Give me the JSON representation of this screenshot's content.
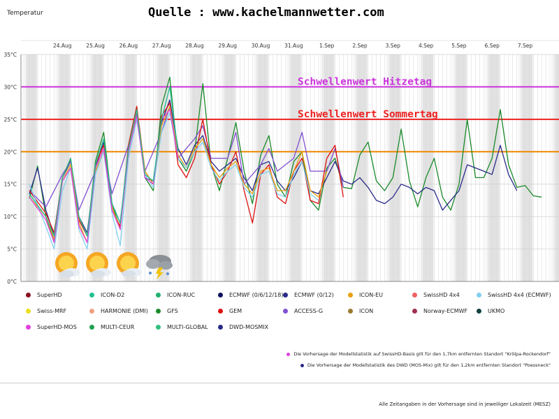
{
  "header": {
    "source": "Quelle : www.kachelmannwetter.com",
    "ytitle": "Temperatur"
  },
  "footer": {
    "timezone_note": "Alle Zeitangaben in der Vorhersage sind in jeweiliger Lokalzeit (MESZ)"
  },
  "notes": [
    {
      "text": "Die Vorhersage der Modellstatistik auf SwissHD-Basis gilt für den 1,7km entfernten Standort \"Krölpa-Rockendorf\"",
      "color": "#e040e0"
    },
    {
      "text": "Die Vorhersage der Modellstatistik des DWD (MOS-Mix) gilt für den 1,2km entfernten Standort \"Poessneck\"",
      "color": "#2a2a8a"
    }
  ],
  "weather_icons": [
    "sun-cloud-icon",
    "sun-cloud-icon",
    "sun-cloud-icon",
    "thunderstorm-icon"
  ],
  "chart_data": {
    "type": "line",
    "title": "",
    "xlabel": "",
    "ylabel": "Temperatur",
    "ylim": [
      0,
      35
    ],
    "yticks": [
      0,
      5,
      10,
      15,
      20,
      25,
      30,
      35
    ],
    "ytick_labels": [
      "0°C",
      "5°C",
      "10°C",
      "15°C",
      "20°C",
      "25°C",
      "30°C",
      "35°C"
    ],
    "day_labels": [
      "24.Aug",
      "25.Aug",
      "26.Aug",
      "27.Aug",
      "28.Aug",
      "29.Aug",
      "30.Aug",
      "31.Aug",
      "1.Sep",
      "2.Sep",
      "3.Sep",
      "4.Sep",
      "5.Sep",
      "6.Sep",
      "7.Sep"
    ],
    "x_unit": "days from 23.Aug 00:00",
    "thresholds": [
      {
        "label": "Schwellenwert Hitzetag",
        "value": 30,
        "color": "#cc33dd"
      },
      {
        "label": "Schwellenwert Sommertag",
        "value": 25,
        "color": "#ee2222"
      },
      {
        "label": "",
        "value": 20,
        "color": "#ee8800"
      }
    ],
    "legend_placement": "bottom",
    "legend": [
      {
        "name": "SuperHD",
        "color": "#8b1020"
      },
      {
        "name": "ICON-D2",
        "color": "#20c090"
      },
      {
        "name": "ICON-RUC",
        "color": "#20b070"
      },
      {
        "name": "ECMWF (0/6/12/18)",
        "color": "#101060"
      },
      {
        "name": "ECMWF (0/12)",
        "color": "#2a2a8a"
      },
      {
        "name": "ICON-EU",
        "color": "#e8a010"
      },
      {
        "name": "SwissHD 4x4",
        "color": "#f06060"
      },
      {
        "name": "SwissHD 4x4 (ECMWF)",
        "color": "#80d0f0"
      },
      {
        "name": "Swiss-MRF",
        "color": "#e8e020"
      },
      {
        "name": "HARMONIE (DMI)",
        "color": "#f0a080"
      },
      {
        "name": "GFS",
        "color": "#1a8a2a"
      },
      {
        "name": "GEM",
        "color": "#dd1010"
      },
      {
        "name": "ACCESS-G",
        "color": "#8050d0"
      },
      {
        "name": "ICON",
        "color": "#9a7a30"
      },
      {
        "name": "Norway-ECMWF",
        "color": "#a03050"
      },
      {
        "name": "UKMO",
        "color": "#104040"
      },
      {
        "name": "SuperHD-MOS",
        "color": "#e040e0"
      },
      {
        "name": "MULTI-CEUR",
        "color": "#20a050"
      },
      {
        "name": "MULTI-GLOBAL",
        "color": "#30c080"
      },
      {
        "name": "DWD-MOSMIX",
        "color": "#2a2a8a"
      }
    ],
    "series": [
      {
        "name": "GFS",
        "x": [
          0.0,
          0.25,
          0.5,
          0.75,
          1.0,
          1.25,
          1.5,
          1.75,
          2.0,
          2.25,
          2.5,
          2.75,
          3.0,
          3.25,
          3.5,
          3.75,
          4.0,
          4.25,
          4.5,
          4.75,
          5.0,
          5.25,
          5.5,
          5.75,
          6.0,
          6.25,
          6.5,
          6.75,
          7.0,
          7.25,
          7.5,
          7.75,
          8.0,
          8.25,
          8.5,
          8.75,
          9.0,
          9.25,
          9.5,
          9.75,
          10.0,
          10.25,
          10.5,
          10.75,
          11.0,
          11.25,
          11.5,
          11.75,
          12.0,
          12.25,
          12.5,
          12.75,
          13.0,
          13.25,
          13.5,
          13.75,
          14.0,
          14.25,
          14.5,
          14.75,
          15.0,
          15.25,
          15.5
        ],
        "y": [
          12.8,
          17.8,
          10.0,
          6.0,
          16.0,
          18.8,
          9.5,
          7.0,
          18.5,
          23.0,
          12.0,
          8.0,
          21.0,
          27.0,
          16.0,
          14.0,
          27.0,
          31.5,
          19.0,
          17.0,
          20.0,
          30.5,
          18.0,
          14.0,
          19.0,
          24.5,
          17.0,
          12.0,
          19.5,
          22.5,
          15.0,
          13.0,
          18.5,
          20.0,
          12.5,
          11.0,
          17.5,
          19.0,
          14.5,
          14.3,
          19.5,
          21.5,
          15.5,
          14.0,
          16.0,
          23.5,
          15.5,
          11.5,
          16.0,
          19.0,
          13.0,
          11.0,
          15.0,
          25.0,
          16.0,
          16.0,
          19.0,
          26.5,
          18.0,
          14.5,
          14.8,
          13.2,
          13.0
        ]
      },
      {
        "name": "ECMWF (0/12)",
        "x": [
          0.0,
          0.25,
          0.5,
          0.75,
          1.0,
          1.25,
          1.5,
          1.75,
          2.0,
          2.25,
          2.5,
          2.75,
          3.0,
          3.25,
          3.5,
          3.75,
          4.0,
          4.25,
          4.5,
          4.75,
          5.0,
          5.25,
          5.5,
          5.75,
          6.0,
          6.25,
          6.5,
          6.75,
          7.0,
          7.25,
          7.5,
          7.75,
          8.0,
          8.25,
          8.5,
          8.75,
          9.0,
          9.25,
          9.5,
          9.75,
          10.0,
          10.25,
          10.5,
          10.75,
          11.0,
          11.25,
          11.5,
          11.75,
          12.0,
          12.25,
          12.5,
          12.75,
          13.0,
          13.25,
          13.5,
          13.75,
          14.0,
          14.25,
          14.5,
          14.75
        ],
        "y": [
          13.5,
          17.5,
          11.0,
          7.0,
          16.0,
          18.5,
          10.0,
          7.5,
          17.5,
          21.5,
          12.0,
          9.0,
          20.0,
          26.0,
          16.0,
          15.5,
          24.5,
          28.0,
          20.5,
          18.0,
          21.0,
          22.5,
          18.5,
          17.0,
          18.0,
          19.0,
          16.0,
          14.0,
          18.0,
          18.5,
          15.5,
          14.0,
          16.0,
          18.5,
          14.0,
          13.5,
          16.0,
          18.5,
          15.5,
          15.0,
          16.0,
          14.5,
          12.5,
          12.0,
          13.0,
          15.0,
          14.5,
          13.5,
          14.5,
          14.0,
          11.0,
          12.5,
          14.0,
          18.0,
          17.5,
          17.0,
          16.5,
          21.0,
          16.5,
          14.0
        ]
      },
      {
        "name": "ACCESS-G",
        "x": [
          0.0,
          0.5,
          1.0,
          1.25,
          1.5,
          2.0,
          2.25,
          2.5,
          3.0,
          3.25,
          3.5,
          4.0,
          4.25,
          4.5,
          5.0,
          5.25,
          5.5,
          6.0,
          6.25,
          6.5,
          7.0,
          7.25,
          7.5,
          8.0,
          8.25,
          8.5,
          9.0,
          9.25,
          9.5
        ],
        "y": [
          14.0,
          11.5,
          16.5,
          18.5,
          11.0,
          17.0,
          20.0,
          13.5,
          21.0,
          26.0,
          17.0,
          23.0,
          27.0,
          19.0,
          22.0,
          24.0,
          19.0,
          19.0,
          23.0,
          15.0,
          18.0,
          20.5,
          17.0,
          19.0,
          23.0,
          17.0,
          17.0,
          20.5,
          14.5
        ]
      },
      {
        "name": "GEM",
        "x": [
          0.0,
          0.5,
          0.75,
          1.0,
          1.25,
          1.5,
          1.75,
          2.0,
          2.25,
          2.5,
          2.75,
          3.0,
          3.25,
          3.5,
          3.75,
          4.0,
          4.25,
          4.5,
          4.75,
          5.0,
          5.25,
          5.5,
          5.75,
          6.0,
          6.25,
          6.5,
          6.75,
          7.0,
          7.25,
          7.5,
          7.75,
          8.0,
          8.25,
          8.5,
          8.75,
          9.0,
          9.25,
          9.5
        ],
        "y": [
          14.0,
          10.5,
          7.5,
          16.0,
          19.0,
          9.5,
          7.0,
          18.0,
          21.0,
          11.0,
          8.5,
          21.0,
          27.0,
          17.0,
          15.0,
          25.5,
          27.5,
          18.0,
          16.0,
          19.0,
          25.0,
          18.0,
          15.0,
          17.0,
          20.0,
          14.0,
          9.0,
          16.5,
          18.0,
          13.0,
          12.0,
          17.0,
          19.0,
          12.5,
          12.0,
          19.0,
          21.0,
          13.0
        ]
      },
      {
        "name": "ICON-EU",
        "x": [
          0.0,
          0.5,
          0.75,
          1.0,
          1.25,
          1.5,
          1.75,
          2.0,
          2.25,
          2.5,
          2.75,
          3.0,
          3.25,
          3.5,
          3.75,
          4.0,
          4.25,
          4.5,
          4.75,
          5.0,
          5.25,
          5.5,
          5.75,
          6.0,
          6.25,
          6.5,
          6.75,
          7.0,
          7.25,
          7.5,
          7.75,
          8.0,
          8.25,
          8.5,
          8.75,
          9.0
        ],
        "y": [
          13.0,
          10.0,
          6.5,
          15.5,
          18.0,
          9.0,
          6.0,
          17.0,
          20.0,
          11.5,
          8.0,
          20.0,
          26.5,
          17.0,
          15.0,
          24.0,
          27.0,
          19.5,
          17.5,
          20.5,
          22.0,
          18.0,
          16.0,
          17.5,
          18.5,
          15.0,
          13.5,
          17.0,
          17.5,
          14.0,
          14.0,
          17.0,
          20.0,
          14.0,
          13.0,
          17.0
        ]
      },
      {
        "name": "SwissHD 4x4 (ECMWF)",
        "x": [
          0.0,
          0.5,
          0.75,
          1.0,
          1.25,
          1.5,
          1.75,
          2.0,
          2.25,
          2.5,
          2.75,
          3.0,
          3.25,
          3.5,
          3.75,
          4.0,
          4.25,
          4.5,
          4.75,
          5.0,
          5.25,
          5.5,
          5.75,
          6.0,
          6.25,
          6.5,
          6.75,
          7.0,
          7.25,
          7.5,
          7.75,
          8.0,
          8.25,
          8.5,
          8.75
        ],
        "y": [
          15.0,
          8.5,
          5.0,
          14.0,
          17.5,
          8.0,
          5.0,
          16.5,
          20.0,
          10.5,
          5.5,
          19.0,
          25.0,
          16.5,
          14.5,
          23.0,
          26.0,
          19.0,
          17.5,
          20.0,
          21.5,
          17.5,
          15.5,
          17.0,
          18.0,
          14.5,
          13.0,
          16.5,
          17.0,
          13.5,
          13.0,
          16.5,
          18.5,
          13.5,
          12.5
        ]
      },
      {
        "name": "SuperHD-MOS",
        "x": [
          0.0,
          0.5,
          0.75,
          1.0,
          1.25,
          1.5,
          1.75,
          2.0,
          2.25,
          2.5,
          2.75,
          3.0,
          3.25,
          3.5,
          3.75,
          4.0,
          4.25,
          4.5
        ],
        "y": [
          13.0,
          9.5,
          6.0,
          15.5,
          17.5,
          8.5,
          6.0,
          17.5,
          20.5,
          11.0,
          8.0,
          20.0,
          25.5,
          16.0,
          15.0,
          25.0,
          26.5,
          19.0
        ]
      },
      {
        "name": "ICON-D2",
        "x": [
          0.0,
          0.5,
          0.75,
          1.0,
          1.25,
          1.5,
          1.75,
          2.0,
          2.25,
          2.5,
          2.75,
          3.0,
          3.25,
          3.5,
          3.75,
          4.0,
          4.25,
          4.5
        ],
        "y": [
          13.5,
          10.0,
          7.0,
          16.0,
          19.0,
          10.0,
          7.0,
          18.0,
          22.0,
          12.0,
          9.0,
          20.5,
          26.5,
          16.5,
          15.5,
          25.0,
          30.0,
          20.0
        ]
      }
    ]
  }
}
